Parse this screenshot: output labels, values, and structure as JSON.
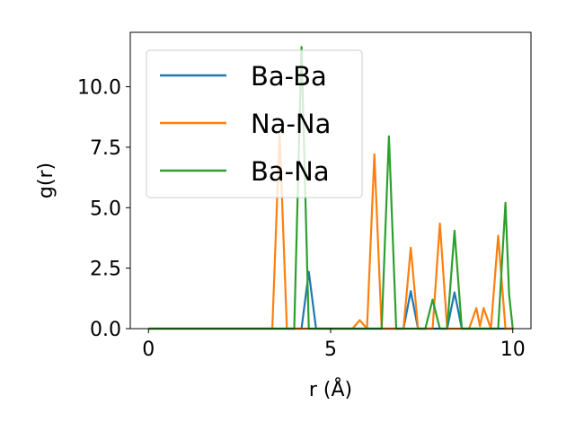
{
  "chart_data": {
    "type": "line",
    "title": "",
    "xlabel": "r (Å)",
    "ylabel": "g(r)",
    "xlim": [
      -0.5,
      10.5
    ],
    "ylim": [
      0,
      12.25
    ],
    "xticks": [
      0,
      5,
      10
    ],
    "xtick_labels": [
      "0",
      "5",
      "10"
    ],
    "yticks": [
      0.0,
      2.5,
      5.0,
      7.5,
      10.0
    ],
    "ytick_labels": [
      "0.0",
      "2.5",
      "5.0",
      "7.5",
      "10.0"
    ],
    "grid": false,
    "legend_position": "top-left",
    "series": [
      {
        "name": "Ba-Ba",
        "color": "#1f77b4",
        "points": [
          [
            0,
            0
          ],
          [
            4.2,
            0
          ],
          [
            4.4,
            2.35
          ],
          [
            4.6,
            0
          ],
          [
            7.0,
            0
          ],
          [
            7.2,
            1.55
          ],
          [
            7.4,
            0
          ],
          [
            8.2,
            0
          ],
          [
            8.4,
            1.5
          ],
          [
            8.6,
            0
          ],
          [
            10,
            0
          ]
        ]
      },
      {
        "name": "Na-Na",
        "color": "#ff7f0e",
        "points": [
          [
            0,
            0
          ],
          [
            3.4,
            0
          ],
          [
            3.6,
            8.1
          ],
          [
            3.8,
            0
          ],
          [
            5.6,
            0
          ],
          [
            5.8,
            0.35
          ],
          [
            6.0,
            0
          ],
          [
            6.2,
            7.2
          ],
          [
            6.4,
            0
          ],
          [
            7.0,
            0
          ],
          [
            7.2,
            3.35
          ],
          [
            7.4,
            0
          ],
          [
            7.8,
            0
          ],
          [
            8.0,
            4.35
          ],
          [
            8.2,
            0
          ],
          [
            8.8,
            0
          ],
          [
            9.0,
            0.85
          ],
          [
            9.1,
            0.1
          ],
          [
            9.2,
            0.85
          ],
          [
            9.4,
            0
          ],
          [
            9.6,
            3.85
          ],
          [
            9.8,
            0
          ],
          [
            10,
            0
          ]
        ]
      },
      {
        "name": "Ba-Na",
        "color": "#2ca02c",
        "points": [
          [
            0,
            0
          ],
          [
            4.0,
            0
          ],
          [
            4.2,
            11.65
          ],
          [
            4.4,
            0
          ],
          [
            6.4,
            0
          ],
          [
            6.6,
            7.95
          ],
          [
            6.8,
            0
          ],
          [
            7.6,
            0
          ],
          [
            7.8,
            1.2
          ],
          [
            8.0,
            0
          ],
          [
            8.2,
            0
          ],
          [
            8.4,
            4.05
          ],
          [
            8.6,
            0
          ],
          [
            9.6,
            0
          ],
          [
            9.8,
            5.2
          ],
          [
            9.9,
            1.4
          ],
          [
            10.0,
            0
          ]
        ]
      }
    ]
  }
}
